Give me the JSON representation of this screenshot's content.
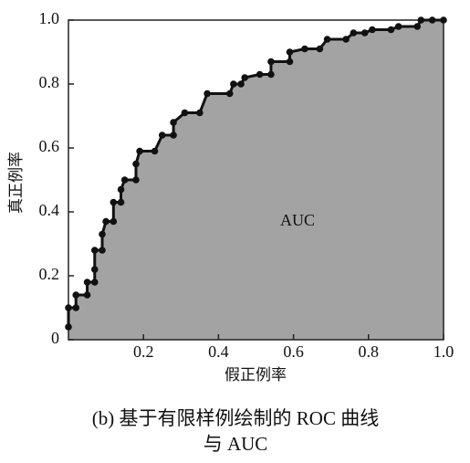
{
  "chart_data": {
    "type": "line",
    "caption": [
      "(b) 基于有限样例绘制的 ROC 曲线",
      "与 AUC"
    ],
    "xlabel": "假正例率",
    "ylabel": "真正例率",
    "annotation": "AUC",
    "x": [
      0,
      0,
      0.02,
      0.02,
      0.05,
      0.05,
      0.07,
      0.07,
      0.07,
      0.09,
      0.09,
      0.1,
      0.12,
      0.12,
      0.14,
      0.14,
      0.15,
      0.18,
      0.18,
      0.19,
      0.23,
      0.25,
      0.28,
      0.28,
      0.31,
      0.35,
      0.37,
      0.43,
      0.44,
      0.46,
      0.47,
      0.51,
      0.54,
      0.54,
      0.59,
      0.59,
      0.63,
      0.67,
      0.69,
      0.74,
      0.76,
      0.79,
      0.81,
      0.86,
      0.88,
      0.93,
      0.94,
      0.97,
      1.0
    ],
    "values": [
      0.04,
      0.1,
      0.1,
      0.14,
      0.14,
      0.18,
      0.18,
      0.22,
      0.28,
      0.28,
      0.33,
      0.37,
      0.37,
      0.43,
      0.43,
      0.47,
      0.5,
      0.5,
      0.55,
      0.59,
      0.59,
      0.64,
      0.64,
      0.68,
      0.71,
      0.71,
      0.77,
      0.77,
      0.8,
      0.8,
      0.82,
      0.83,
      0.83,
      0.87,
      0.87,
      0.9,
      0.91,
      0.91,
      0.94,
      0.94,
      0.96,
      0.96,
      0.97,
      0.97,
      0.98,
      0.98,
      1.0,
      1.0,
      1.0
    ],
    "color": "#111111",
    "fill": "#a3a3a3",
    "xlim": [
      0,
      1
    ],
    "ylim": [
      0,
      1
    ],
    "xticks": [
      0.2,
      0.4,
      0.6,
      0.8,
      {
        "value": 1,
        "label": "1.0"
      }
    ],
    "yticks": [
      0,
      0.2,
      0.4,
      0.6,
      0.8,
      {
        "value": 1,
        "label": "1.0"
      }
    ]
  }
}
